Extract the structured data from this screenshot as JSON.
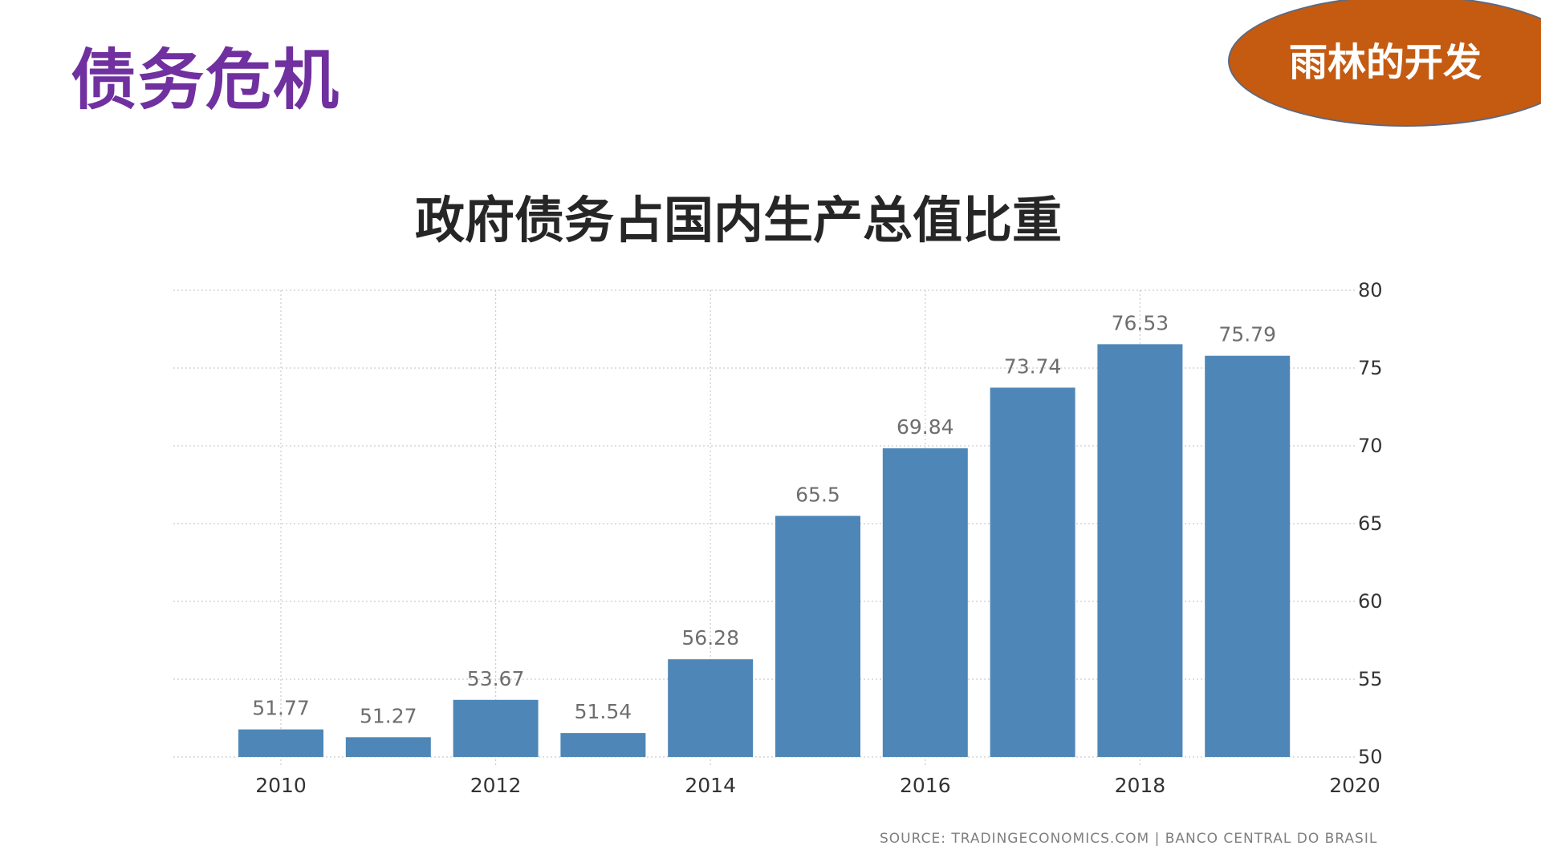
{
  "slide": {
    "title": "债务危机",
    "badge": "雨林的开发"
  },
  "colors": {
    "title": "#7030a0",
    "badge": "#c55a11",
    "bar": "#4e87b7",
    "grid": "#cccccc",
    "value_label": "#6e6e6e",
    "tick_label": "#333333"
  },
  "chart_data": {
    "type": "bar",
    "title": "政府债务占国内生产总值比重",
    "x": [
      2010,
      2011,
      2012,
      2013,
      2014,
      2015,
      2016,
      2017,
      2018,
      2019
    ],
    "values": [
      51.77,
      51.27,
      53.67,
      51.54,
      56.28,
      65.5,
      69.84,
      73.74,
      76.53,
      75.79
    ],
    "value_labels": [
      "51.77",
      "51.27",
      "53.67",
      "51.54",
      "56.28",
      "65.5",
      "69.84",
      "73.74",
      "76.53",
      "75.79"
    ],
    "x_ticks": [
      "2010",
      "2012",
      "2014",
      "2016",
      "2018",
      "2020"
    ],
    "y_ticks": [
      "80",
      "75",
      "70",
      "65",
      "60",
      "55",
      "50"
    ],
    "ylim": [
      50,
      80
    ],
    "y_axis_side": "right",
    "grid": true,
    "xlabel": "",
    "ylabel": "",
    "source": "SOURCE: TRADINGECONOMICS.COM | BANCO CENTRAL DO BRASIL"
  }
}
